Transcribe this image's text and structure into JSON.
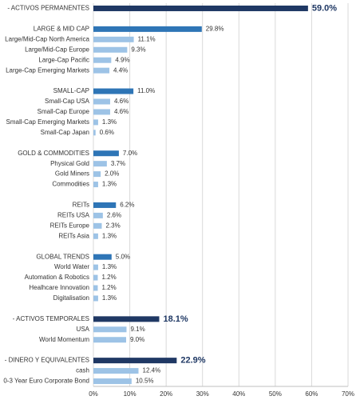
{
  "chart_data": {
    "type": "hbar",
    "categories": [
      "- ACTIVOS PERMANENTES",
      null,
      "LARGE & MID CAP",
      "Large/Mid-Cap North America",
      "Large/Mid-Cap Europe",
      "Large-Cap Pacific",
      "Large-Cap Emerging Markets",
      null,
      "SMALL-CAP",
      "Small-Cap USA",
      "Small-Cap Europe",
      "Small-Cap Emerging Markets",
      "Small-Cap Japan",
      null,
      "GOLD & COMMODITIES",
      "Physical Gold",
      "Gold Miners",
      "Commodities",
      null,
      "REITs",
      "REITs USA",
      "REITs Europe",
      "REITs Asia",
      null,
      "GLOBAL TRENDS",
      "World Water",
      "Automation & Robotics",
      "Healhcare Innovation",
      "Digitalisation",
      null,
      "- ACTIVOS TEMPORALES",
      "USA",
      "World Momentum",
      null,
      "- DINERO Y EQUIVALENTES",
      "cash",
      "0-3 Year Euro Corporate Bond"
    ],
    "values": [
      59.0,
      null,
      29.8,
      11.1,
      9.3,
      4.9,
      4.4,
      null,
      11.0,
      4.6,
      4.6,
      1.3,
      0.6,
      null,
      7.0,
      3.7,
      2.0,
      1.3,
      null,
      6.2,
      2.6,
      2.3,
      1.3,
      null,
      5.0,
      1.3,
      1.2,
      1.2,
      1.3,
      null,
      18.1,
      9.1,
      9.0,
      null,
      22.9,
      12.4,
      10.5
    ],
    "value_labels": [
      "59.0%",
      null,
      "29.8%",
      "11.1%",
      "9.3%",
      "4.9%",
      "4.4%",
      null,
      "11.0%",
      "4.6%",
      "4.6%",
      "1.3%",
      "0.6%",
      null,
      "7.0%",
      "3.7%",
      "2.0%",
      "1.3%",
      null,
      "6.2%",
      "2.6%",
      "2.3%",
      "1.3%",
      null,
      "5.0%",
      "1.3%",
      "1.2%",
      "1.2%",
      "1.3%",
      null,
      "18.1%",
      "9.1%",
      "9.0%",
      null,
      "22.9%",
      "12.4%",
      "10.5%"
    ],
    "colors": [
      "#1f3864",
      null,
      "#2e75b6",
      "#9dc3e6",
      "#9dc3e6",
      "#9dc3e6",
      "#9dc3e6",
      null,
      "#2e75b6",
      "#9dc3e6",
      "#9dc3e6",
      "#9dc3e6",
      "#9dc3e6",
      null,
      "#2e75b6",
      "#9dc3e6",
      "#9dc3e6",
      "#9dc3e6",
      null,
      "#2e75b6",
      "#9dc3e6",
      "#9dc3e6",
      "#9dc3e6",
      null,
      "#2e75b6",
      "#9dc3e6",
      "#9dc3e6",
      "#9dc3e6",
      "#9dc3e6",
      null,
      "#1f3864",
      "#9dc3e6",
      "#9dc3e6",
      null,
      "#1f3864",
      "#9dc3e6",
      "#9dc3e6"
    ],
    "xlim": [
      0,
      70
    ],
    "xticks": [
      {
        "value": 0,
        "label": "0%"
      },
      {
        "value": 10,
        "label": "10%"
      },
      {
        "value": 20,
        "label": "20%"
      },
      {
        "value": 30,
        "label": "30%"
      },
      {
        "value": 40,
        "label": "40%"
      },
      {
        "value": 50,
        "label": "50%"
      },
      {
        "value": 60,
        "label": "60%"
      },
      {
        "value": 70,
        "label": "70%"
      }
    ],
    "grid": true
  }
}
